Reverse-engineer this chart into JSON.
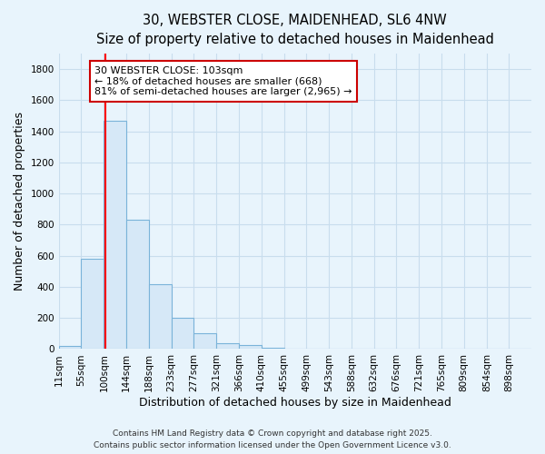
{
  "title_line1": "30, WEBSTER CLOSE, MAIDENHEAD, SL6 4NW",
  "title_line2": "Size of property relative to detached houses in Maidenhead",
  "xlabel": "Distribution of detached houses by size in Maidenhead",
  "ylabel": "Number of detached properties",
  "bar_values": [
    20,
    580,
    1470,
    830,
    420,
    200,
    100,
    35,
    25,
    10,
    5,
    2,
    2,
    2,
    1,
    0,
    0,
    1,
    0,
    1,
    0
  ],
  "bin_edges": [
    11,
    55,
    100,
    144,
    188,
    233,
    277,
    321,
    366,
    410,
    455,
    499,
    543,
    588,
    632,
    676,
    721,
    765,
    809,
    854,
    898,
    942
  ],
  "tick_labels": [
    "11sqm",
    "55sqm",
    "100sqm",
    "144sqm",
    "188sqm",
    "233sqm",
    "277sqm",
    "321sqm",
    "366sqm",
    "410sqm",
    "455sqm",
    "499sqm",
    "543sqm",
    "588sqm",
    "632sqm",
    "676sqm",
    "721sqm",
    "765sqm",
    "809sqm",
    "854sqm",
    "898sqm"
  ],
  "bar_color": "#d6e8f7",
  "bar_edge_color": "#7ab3d9",
  "bg_color": "#e8f4fc",
  "plot_bg_color": "#e8f4fc",
  "grid_color": "#c8dded",
  "red_line_x": 103,
  "annotation_text": "30 WEBSTER CLOSE: 103sqm\n← 18% of detached houses are smaller (668)\n81% of semi-detached houses are larger (2,965) →",
  "annotation_box_facecolor": "#ffffff",
  "annotation_box_edgecolor": "#cc0000",
  "ylim": [
    0,
    1900
  ],
  "yticks": [
    0,
    200,
    400,
    600,
    800,
    1000,
    1200,
    1400,
    1600,
    1800
  ],
  "footer_line1": "Contains HM Land Registry data © Crown copyright and database right 2025.",
  "footer_line2": "Contains public sector information licensed under the Open Government Licence v3.0.",
  "title_fontsize": 10.5,
  "subtitle_fontsize": 9.5,
  "axis_label_fontsize": 9,
  "tick_fontsize": 7.5,
  "annotation_fontsize": 8,
  "footer_fontsize": 6.5
}
